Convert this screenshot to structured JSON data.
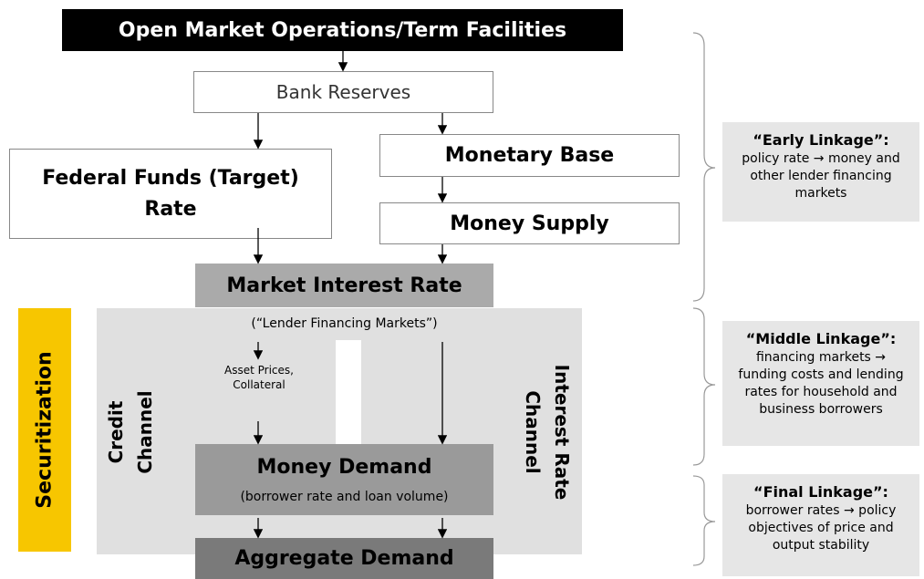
{
  "nodes": {
    "open_market": "Open Market Operations/Term Facilities",
    "bank_reserves": "Bank Reserves",
    "federal_funds": [
      "Federal Funds (Target)",
      "Rate"
    ],
    "monetary_base": "Monetary Base",
    "money_supply": "Money Supply",
    "market_interest_rate": {
      "title": "Market Interest Rate",
      "subtitle": "(“Lender Financing Markets”)"
    },
    "asset_prices": [
      "Asset Prices,",
      "Collateral"
    ],
    "money_demand": {
      "title": "Money Demand",
      "subtitle": "(borrower rate and loan volume)"
    },
    "aggregate_demand": "Aggregate Demand",
    "securitization": "Securitization",
    "credit_channel": [
      "Credit",
      "Channel"
    ],
    "interest_rate_channel": [
      "Interest Rate",
      "Channel"
    ]
  },
  "linkages": [
    {
      "title": "“Early Linkage”:",
      "lines": [
        "policy rate → money and",
        "other lender financing",
        "markets"
      ]
    },
    {
      "title": "“Middle Linkage”:",
      "lines": [
        "financing markets →",
        "funding costs and lending",
        "rates for household and",
        "business borrowers"
      ]
    },
    {
      "title": "“Final Linkage”:",
      "lines": [
        "borrower rates → policy",
        "objectives of price and",
        "output stability"
      ]
    }
  ]
}
